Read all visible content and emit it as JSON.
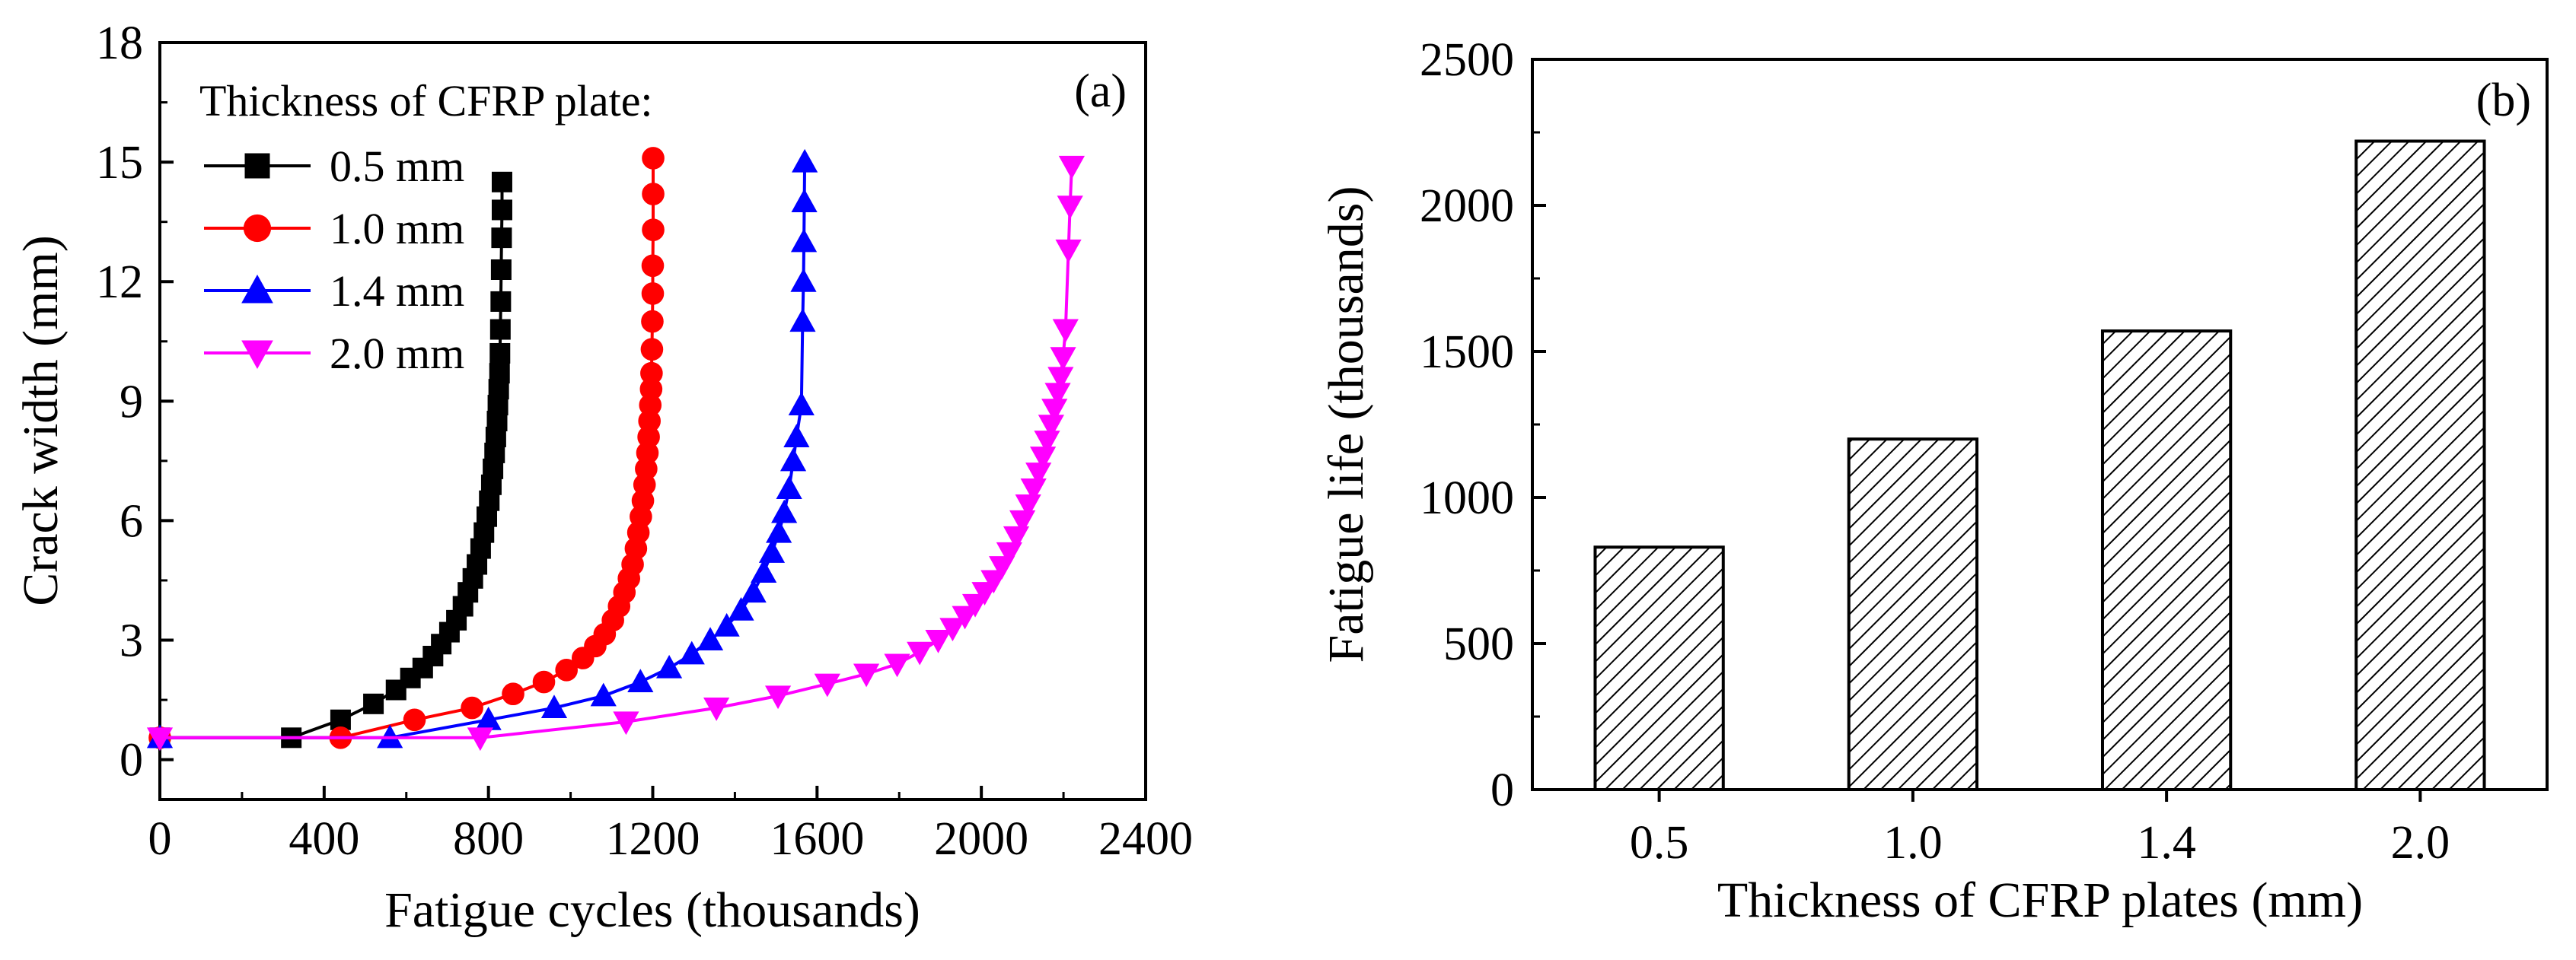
{
  "chart_data": [
    {
      "panel": "a",
      "type": "line",
      "panel_label": "(a)",
      "xlabel": "Fatigue cycles  (thousands)",
      "ylabel": "Crack width  (mm)",
      "xlim": [
        0,
        2400
      ],
      "ylim": [
        -1,
        18
      ],
      "x_ticks": [
        "0",
        "400",
        "800",
        "1200",
        "1600",
        "2000",
        "2400"
      ],
      "y_ticks": [
        "0",
        "3",
        "6",
        "9",
        "12",
        "15",
        "18"
      ],
      "legend_title": "Thickness of CFRP plate:",
      "colors": {
        "0.5 mm": "#000000",
        "1.0 mm": "#ff0000",
        "1.4 mm": "#0000ff",
        "2.0 mm": "#ff00ff"
      },
      "series": [
        {
          "name": "0.5 mm",
          "color": "#000000",
          "marker": "square",
          "points": [
            [
              0,
              0.55
            ],
            [
              320,
              0.55
            ],
            [
              440,
              1.0
            ],
            [
              520,
              1.4
            ],
            [
              575,
              1.75
            ],
            [
              610,
              2.05
            ],
            [
              640,
              2.3
            ],
            [
              665,
              2.6
            ],
            [
              685,
              2.9
            ],
            [
              705,
              3.2
            ],
            [
              722,
              3.5
            ],
            [
              738,
              3.85
            ],
            [
              750,
              4.2
            ],
            [
              762,
              4.55
            ],
            [
              772,
              4.9
            ],
            [
              781,
              5.3
            ],
            [
              789,
              5.7
            ],
            [
              796,
              6.1
            ],
            [
              802,
              6.5
            ],
            [
              807,
              6.9
            ],
            [
              811,
              7.3
            ],
            [
              815,
              7.7
            ],
            [
              818,
              8.1
            ],
            [
              821,
              8.5
            ],
            [
              823,
              8.9
            ],
            [
              825,
              9.3
            ],
            [
              827,
              9.7
            ],
            [
              828,
              10.2
            ],
            [
              829,
              10.8
            ],
            [
              830,
              11.5
            ],
            [
              831,
              12.3
            ],
            [
              832,
              13.1
            ],
            [
              833,
              13.8
            ],
            [
              833,
              14.5
            ]
          ]
        },
        {
          "name": "1.0 mm",
          "color": "#ff0000",
          "marker": "circle",
          "points": [
            [
              0,
              0.55
            ],
            [
              440,
              0.55
            ],
            [
              620,
              1.0
            ],
            [
              760,
              1.3
            ],
            [
              860,
              1.65
            ],
            [
              935,
              1.95
            ],
            [
              990,
              2.25
            ],
            [
              1030,
              2.55
            ],
            [
              1060,
              2.85
            ],
            [
              1083,
              3.15
            ],
            [
              1103,
              3.5
            ],
            [
              1118,
              3.85
            ],
            [
              1131,
              4.2
            ],
            [
              1142,
              4.55
            ],
            [
              1151,
              4.9
            ],
            [
              1159,
              5.3
            ],
            [
              1165,
              5.7
            ],
            [
              1171,
              6.1
            ],
            [
              1176,
              6.5
            ],
            [
              1180,
              6.9
            ],
            [
              1184,
              7.3
            ],
            [
              1187,
              7.7
            ],
            [
              1190,
              8.1
            ],
            [
              1192,
              8.5
            ],
            [
              1194,
              8.9
            ],
            [
              1196,
              9.3
            ],
            [
              1197,
              9.7
            ],
            [
              1198,
              10.3
            ],
            [
              1199,
              11.0
            ],
            [
              1200,
              11.7
            ],
            [
              1200,
              12.4
            ],
            [
              1201,
              13.3
            ],
            [
              1201,
              14.2
            ],
            [
              1201,
              15.1
            ]
          ]
        },
        {
          "name": "1.4 mm",
          "color": "#0000ff",
          "marker": "triangle-up",
          "points": [
            [
              0,
              0.55
            ],
            [
              560,
              0.55
            ],
            [
              800,
              1.0
            ],
            [
              960,
              1.3
            ],
            [
              1080,
              1.6
            ],
            [
              1170,
              1.95
            ],
            [
              1240,
              2.3
            ],
            [
              1295,
              2.65
            ],
            [
              1340,
              3.0
            ],
            [
              1380,
              3.35
            ],
            [
              1415,
              3.75
            ],
            [
              1445,
              4.2
            ],
            [
              1470,
              4.7
            ],
            [
              1490,
              5.2
            ],
            [
              1507,
              5.7
            ],
            [
              1520,
              6.2
            ],
            [
              1532,
              6.8
            ],
            [
              1542,
              7.5
            ],
            [
              1550,
              8.1
            ],
            [
              1562,
              8.9
            ],
            [
              1565,
              11.0
            ],
            [
              1567,
              12.0
            ],
            [
              1568,
              13.0
            ],
            [
              1569,
              14.0
            ],
            [
              1570,
              15.0
            ]
          ]
        },
        {
          "name": "2.0 mm",
          "color": "#ff00ff",
          "marker": "triangle-down",
          "points": [
            [
              0,
              0.55
            ],
            [
              780,
              0.55
            ],
            [
              1135,
              0.95
            ],
            [
              1355,
              1.3
            ],
            [
              1505,
              1.6
            ],
            [
              1625,
              1.9
            ],
            [
              1720,
              2.15
            ],
            [
              1795,
              2.4
            ],
            [
              1850,
              2.7
            ],
            [
              1895,
              3.0
            ],
            [
              1930,
              3.3
            ],
            [
              1960,
              3.6
            ],
            [
              1985,
              3.9
            ],
            [
              2008,
              4.2
            ],
            [
              2030,
              4.5
            ],
            [
              2050,
              4.85
            ],
            [
              2068,
              5.2
            ],
            [
              2085,
              5.6
            ],
            [
              2100,
              6.0
            ],
            [
              2114,
              6.4
            ],
            [
              2127,
              6.8
            ],
            [
              2139,
              7.2
            ],
            [
              2150,
              7.6
            ],
            [
              2160,
              8.0
            ],
            [
              2170,
              8.4
            ],
            [
              2178,
              8.8
            ],
            [
              2186,
              9.2
            ],
            [
              2193,
              9.6
            ],
            [
              2199,
              10.1
            ],
            [
              2205,
              10.8
            ],
            [
              2212,
              12.8
            ],
            [
              2216,
              13.9
            ],
            [
              2220,
              14.9
            ]
          ]
        }
      ]
    },
    {
      "panel": "b",
      "type": "bar",
      "panel_label": "(b)",
      "xlabel": "Thickness of CFRP plates (mm)",
      "ylabel": "Fatigue life (thousands)",
      "ylim": [
        0,
        2500
      ],
      "y_ticks": [
        "0",
        "500",
        "1000",
        "1500",
        "2000",
        "2500"
      ],
      "categories": [
        "0.5",
        "1.0",
        "1.4",
        "2.0"
      ],
      "values": [
        830,
        1200,
        1570,
        2220
      ],
      "bar_fill": "hatched"
    }
  ]
}
